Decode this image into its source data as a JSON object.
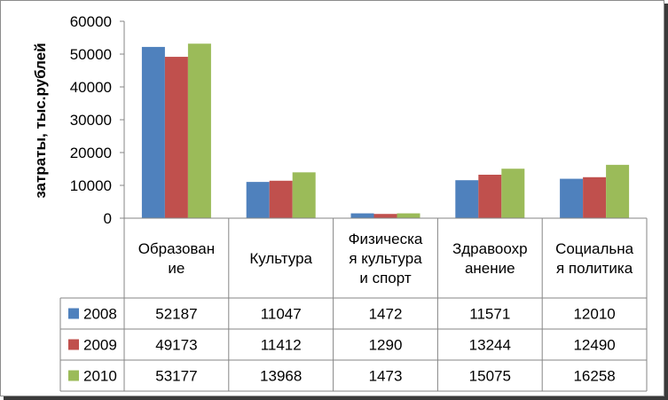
{
  "chart_data": {
    "type": "bar",
    "title": "",
    "xlabel": "",
    "ylabel": "затраты, тыс.рублей",
    "ylim": [
      0,
      60000
    ],
    "yticks": [
      "0",
      "10000",
      "20000",
      "30000",
      "40000",
      "50000",
      "60000"
    ],
    "grid": false,
    "legend": "data-table",
    "categories": [
      [
        "Образован",
        "ие"
      ],
      [
        "Культура"
      ],
      [
        "Физическа",
        "я культура",
        "и спорт"
      ],
      [
        "Здравоохр",
        "анение"
      ],
      [
        "Социальна",
        "я политика"
      ]
    ],
    "series": [
      {
        "name": "2008",
        "color": "#4f81bd",
        "values": [
          52187,
          11047,
          1472,
          11571,
          12010
        ]
      },
      {
        "name": "2009",
        "color": "#c0504d",
        "values": [
          49173,
          11412,
          1290,
          13244,
          12490
        ]
      },
      {
        "name": "2010",
        "color": "#9bbb59",
        "values": [
          53177,
          13968,
          1473,
          15075,
          16258
        ]
      }
    ]
  }
}
